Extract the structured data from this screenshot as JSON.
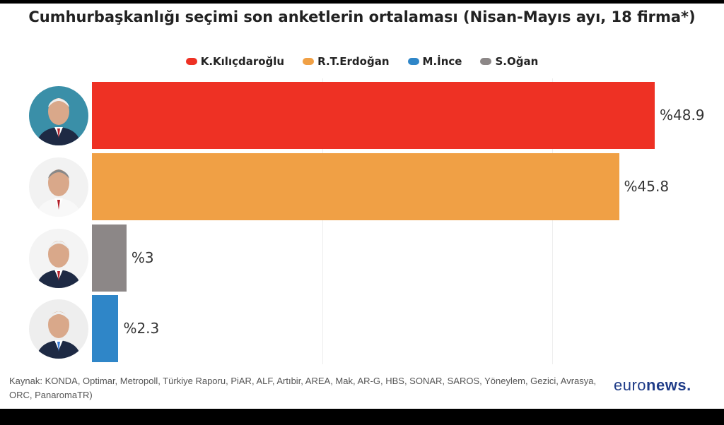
{
  "chart_data": {
    "type": "bar",
    "orientation": "horizontal",
    "title": "Cumhurbaşkanlığı seçimi son anketlerin ortalaması (Nisan-Mayıs ayı, 18 firma*)",
    "categories": [
      "K.Kılıçdaroğlu",
      "R.T.Erdoğan",
      "S.Oğan",
      "M.İnce"
    ],
    "values": [
      48.9,
      45.8,
      3,
      2.3
    ],
    "value_labels": [
      "%48.9",
      "%45.8",
      "%3",
      "%2.3"
    ],
    "colors": [
      "#ee3124",
      "#f0a045",
      "#8c8787",
      "#2f86c8"
    ],
    "xlim": [
      0,
      50
    ],
    "grid": true,
    "legend": {
      "placement": "top",
      "entries": [
        {
          "label": "K.Kılıçdaroğlu",
          "color": "#ee3124"
        },
        {
          "label": "R.T.Erdoğan",
          "color": "#f0a045"
        },
        {
          "label": "M.İnce",
          "color": "#2f86c8"
        },
        {
          "label": "S.Oğan",
          "color": "#8c8787"
        }
      ]
    }
  },
  "source": "Kaynak: KONDA, Optimar, Metropoll, Türkiye Raporu, PiAR, ALF, Artıbir, AREA, Mak, AR-G, HBS, SONAR, SAROS, Yöneylem, Gezici, Avrasya, ORC, PanaromaTR)",
  "logo": {
    "part1": "euro",
    "part2": "news."
  }
}
